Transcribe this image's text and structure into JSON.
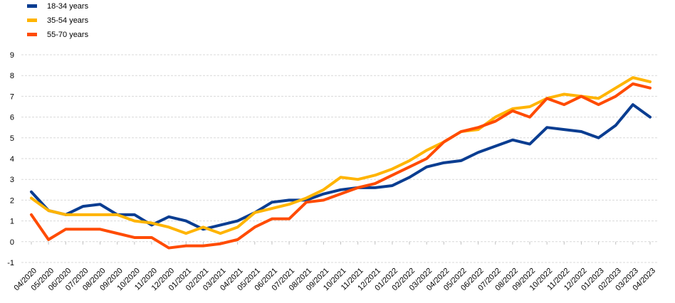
{
  "chart_data": {
    "type": "line",
    "title": "",
    "xlabel": "",
    "ylabel": "",
    "ylim": [
      -1,
      9
    ],
    "yticks": [
      -1,
      0,
      1,
      2,
      3,
      4,
      5,
      6,
      7,
      8,
      9
    ],
    "grid": "horizontal",
    "legend_position": "top-left",
    "categories": [
      "04/2020",
      "05/2020",
      "06/2020",
      "07/2020",
      "08/2020",
      "09/2020",
      "10/2020",
      "11/2020",
      "12/2020",
      "01/2021",
      "02/2021",
      "03/2021",
      "04/2021",
      "05/2021",
      "06/2021",
      "07/2021",
      "08/2021",
      "09/2021",
      "10/2021",
      "11/2021",
      "12/2021",
      "01/2022",
      "02/2022",
      "03/2022",
      "04/2022",
      "05/2022",
      "06/2022",
      "07/2022",
      "08/2022",
      "09/2022",
      "10/2022",
      "11/2022",
      "12/2022",
      "01/2023",
      "02/2023",
      "03/2023",
      "04/2023"
    ],
    "series": [
      {
        "name": "18-34 years",
        "color": "#0a3d91",
        "values": [
          2.4,
          1.5,
          1.3,
          1.7,
          1.8,
          1.3,
          1.3,
          0.8,
          1.2,
          1.0,
          0.6,
          0.8,
          1.0,
          1.4,
          1.9,
          2.0,
          2.0,
          2.3,
          2.5,
          2.6,
          2.6,
          2.7,
          3.1,
          3.6,
          3.8,
          3.9,
          4.3,
          4.6,
          4.9,
          4.7,
          5.5,
          5.4,
          5.3,
          5.0,
          5.6,
          6.6,
          6.0
        ]
      },
      {
        "name": "35-54 years",
        "color": "#ffb400",
        "values": [
          2.1,
          1.5,
          1.3,
          1.3,
          1.3,
          1.3,
          1.0,
          0.9,
          0.7,
          0.4,
          0.7,
          0.4,
          0.7,
          1.4,
          1.6,
          1.8,
          2.1,
          2.5,
          3.1,
          3.0,
          3.2,
          3.5,
          3.9,
          4.4,
          4.8,
          5.3,
          5.4,
          6.0,
          6.4,
          6.5,
          6.9,
          7.1,
          7.0,
          6.9,
          7.4,
          7.9,
          7.7
        ]
      },
      {
        "name": "55-70 years",
        "color": "#ff4b00",
        "values": [
          1.3,
          0.1,
          0.6,
          0.6,
          0.6,
          0.4,
          0.2,
          0.2,
          -0.3,
          -0.2,
          -0.2,
          -0.1,
          0.1,
          0.7,
          1.1,
          1.1,
          1.9,
          2.0,
          2.3,
          2.6,
          2.8,
          3.2,
          3.6,
          4.0,
          4.8,
          5.3,
          5.5,
          5.8,
          6.3,
          6.0,
          6.9,
          6.6,
          7.0,
          6.6,
          7.0,
          7.6,
          7.4
        ]
      }
    ]
  }
}
